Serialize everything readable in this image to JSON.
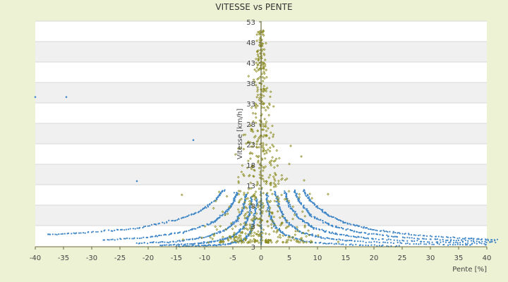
{
  "chart_data": {
    "type": "scatter",
    "title": "VITESSE vs PENTE",
    "xlabel": "Pente [%]",
    "ylabel": "Vitesse [km/h]",
    "xlim": [
      -40,
      40
    ],
    "ylim": [
      3,
      58
    ],
    "x_ticks": [
      "-40",
      "-35",
      "-30",
      "-25",
      "-20",
      "-15",
      "-10",
      "-5",
      "0",
      "5",
      "10",
      "15",
      "20",
      "25",
      "30",
      "35",
      "40"
    ],
    "y_ticks": [
      "3",
      "3",
      "8",
      "13",
      "18",
      "23",
      "28",
      "33",
      "38",
      "43",
      "48",
      "53"
    ],
    "grid": "horizontal bands",
    "colors": {
      "plot_background": "#ffffff",
      "band_alt": "#f0f0f0",
      "page_background": "#eef2d4",
      "axis": "#6b6b3a",
      "series_simulated": "#3d85c6",
      "series_measured": "#8a8a1e"
    },
    "series": [
      {
        "type": "curves",
        "color": "#3d85c6",
        "description_free": true,
        "curves": [
          [
            [
              -38,
              6.0
            ],
            [
              -30,
              6.5
            ],
            [
              -22,
              7.5
            ],
            [
              -15,
              9.5
            ],
            [
              -11,
              11.5
            ],
            [
              -8,
              14.5
            ],
            [
              -6.5,
              17
            ]
          ],
          [
            [
              -28,
              4.6
            ],
            [
              -20,
              5.3
            ],
            [
              -14,
              6.5
            ],
            [
              -9,
              8.6
            ],
            [
              -6.5,
              11
            ],
            [
              -5,
              13.5
            ],
            [
              -4.2,
              16.5
            ]
          ],
          [
            [
              -22,
              3.8
            ],
            [
              -15,
              4.3
            ],
            [
              -10,
              5.3
            ],
            [
              -6,
              7.3
            ],
            [
              -4.2,
              9.5
            ],
            [
              -3.1,
              12.5
            ],
            [
              -2.6,
              16
            ]
          ],
          [
            [
              -18,
              3.3
            ],
            [
              -12,
              3.7
            ],
            [
              -8,
              4.3
            ],
            [
              -4.8,
              5.6
            ],
            [
              -3,
              7.8
            ],
            [
              -2.1,
              11
            ],
            [
              -1.6,
              15.5
            ]
          ],
          [
            [
              -15,
              3.1
            ],
            [
              -10,
              3.3
            ],
            [
              -6,
              3.6
            ],
            [
              -3.2,
              4.5
            ],
            [
              -1.8,
              6.5
            ],
            [
              -1.1,
              10
            ],
            [
              -0.7,
              15
            ]
          ],
          [
            [
              0.9,
              16
            ],
            [
              1.3,
              12
            ],
            [
              2.2,
              8.5
            ],
            [
              4,
              6
            ],
            [
              8,
              4.2
            ],
            [
              15,
              3.5
            ],
            [
              25,
              3.2
            ]
          ],
          [
            [
              2.5,
              16.5
            ],
            [
              3.2,
              12.5
            ],
            [
              4.6,
              9
            ],
            [
              7,
              6.6
            ],
            [
              11,
              5.1
            ],
            [
              17,
              4.3
            ],
            [
              28,
              3.7
            ],
            [
              38,
              3.4
            ]
          ],
          [
            [
              4.2,
              16.5
            ],
            [
              5,
              13
            ],
            [
              6.8,
              9.8
            ],
            [
              9.5,
              7.5
            ],
            [
              14,
              5.9
            ],
            [
              20,
              4.9
            ],
            [
              30,
              4.2
            ],
            [
              40,
              3.8
            ]
          ],
          [
            [
              5.8,
              16.8
            ],
            [
              7,
              13.5
            ],
            [
              9,
              10.5
            ],
            [
              12.5,
              8.1
            ],
            [
              17,
              6.6
            ],
            [
              24,
              5.4
            ],
            [
              33,
              4.6
            ],
            [
              42,
              4.1
            ]
          ],
          [
            [
              7.5,
              16.8
            ],
            [
              9,
              13.8
            ],
            [
              11.5,
              11
            ],
            [
              15,
              8.8
            ],
            [
              20,
              7.1
            ],
            [
              27,
              5.9
            ],
            [
              36,
              5.0
            ],
            [
              42,
              4.6
            ]
          ]
        ]
      },
      {
        "type": "cloud",
        "color": "#8a8a1e",
        "peak_y": 56,
        "spread_x": 9
      }
    ],
    "outliers": [
      [
        -40,
        39.5
      ],
      [
        -34.5,
        39.5
      ],
      [
        -12,
        29
      ],
      [
        -22,
        19
      ],
      [
        39.8,
        3.5
      ]
    ]
  }
}
